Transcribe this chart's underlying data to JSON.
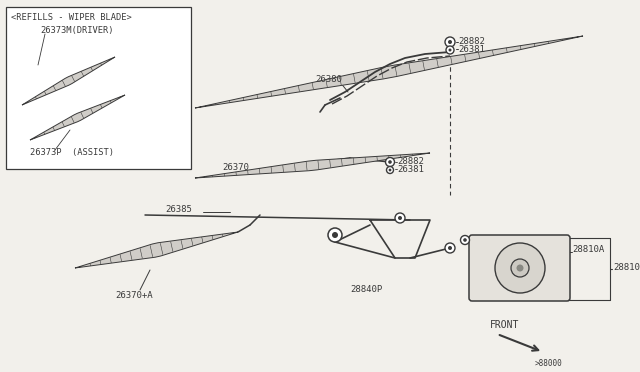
{
  "bg_color": "#f2f0eb",
  "line_color": "#3a3a3a",
  "fs": 6.5,
  "ff": "monospace",
  "labels": {
    "refills_header": "<REFILLS - WIPER BLADE>",
    "driver_label": "26373M(DRIVER)",
    "assist_label": "26373P  (ASSIST)",
    "part_26380": "26380",
    "part_28882a": "28882",
    "part_26381a": "26381",
    "part_26370": "26370",
    "part_28882b": "28882",
    "part_26381b": "26381",
    "part_26385": "26385",
    "part_28840p": "28840P",
    "part_28810a": "28810A",
    "part_28810": "28810",
    "part_26370a": "26370+A",
    "front_label": "FRONT",
    "diagram_code": ">88000"
  }
}
